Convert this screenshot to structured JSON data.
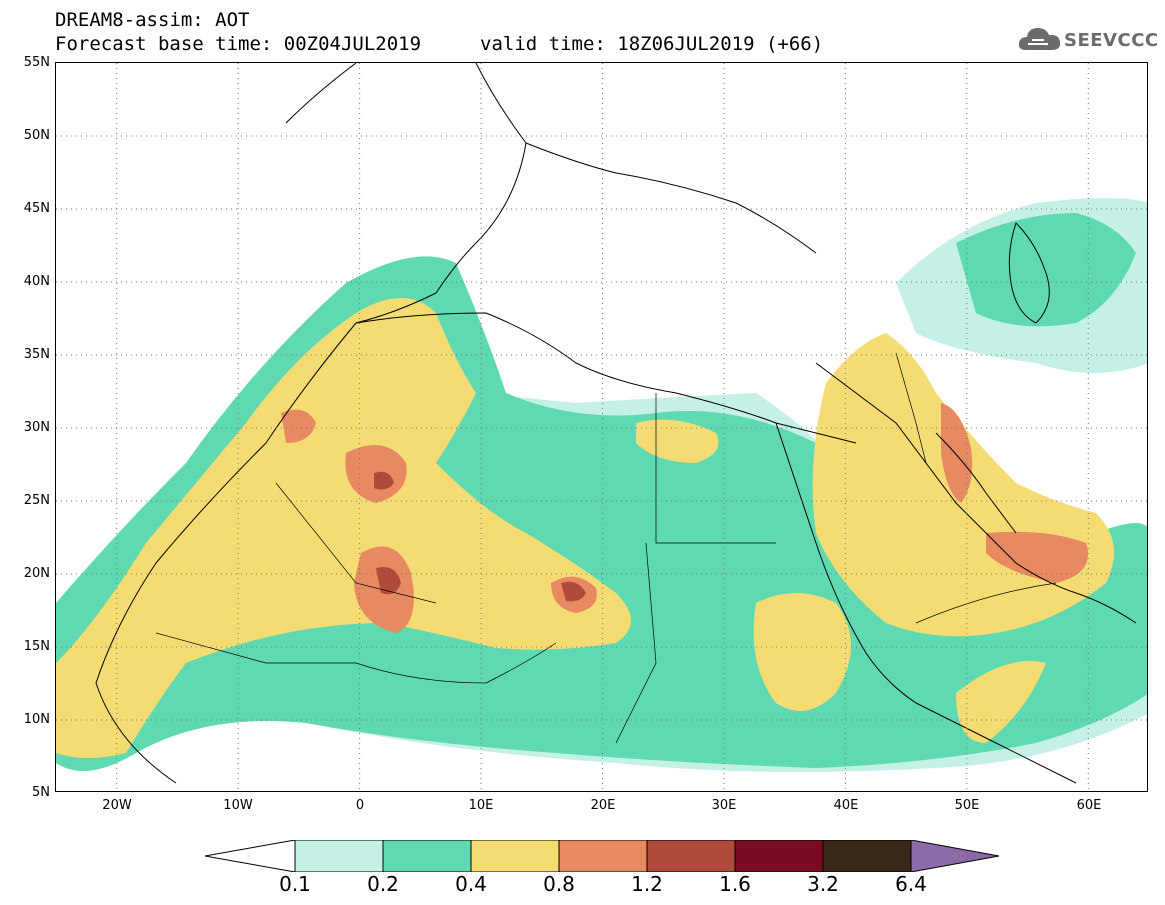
{
  "header": {
    "title": "DREAM8-assim: AOT",
    "base_time": "Forecast base time: 00Z04JUL2019",
    "valid_time": "valid time: 18Z06JUL2019 (+66)"
  },
  "logo": {
    "text": "SEEVCCC",
    "icon": "cloud-icon"
  },
  "map": {
    "lat_labels": [
      "55N",
      "50N",
      "45N",
      "40N",
      "35N",
      "30N",
      "25N",
      "20N",
      "15N",
      "10N",
      "5N"
    ],
    "lon_labels": [
      "20W",
      "10W",
      "0",
      "10E",
      "20E",
      "30E",
      "40E",
      "50E",
      "60E"
    ],
    "extent": {
      "lon": [
        -25,
        65
      ],
      "lat": [
        5,
        55
      ]
    },
    "grid": "dotted"
  },
  "legend": {
    "levels": [
      "0.1",
      "0.2",
      "0.4",
      "0.8",
      "1.2",
      "1.6",
      "3.2",
      "6.4"
    ],
    "colors": [
      "#ffffff",
      "#c4f0e8",
      "#5ed9b2",
      "#f4dc73",
      "#e78a62",
      "#b04a3a",
      "#7a0d24",
      "#3a2a19",
      "#8c6aa8"
    ]
  }
}
